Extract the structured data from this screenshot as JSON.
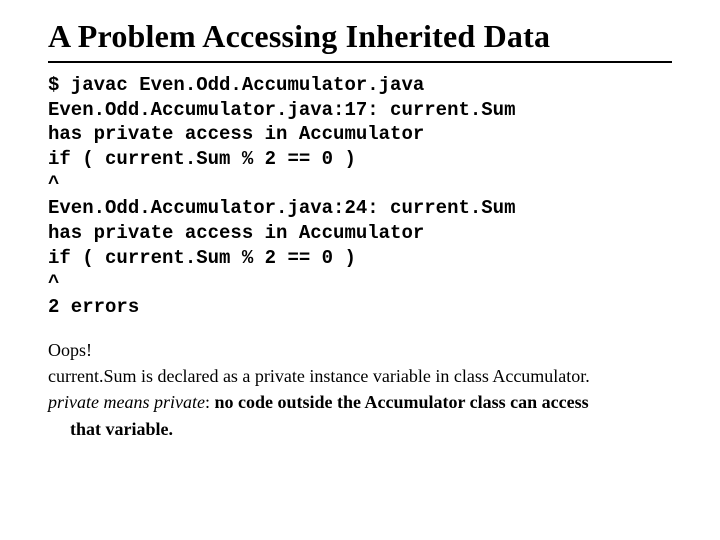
{
  "title": "A Problem Accessing Inherited Data",
  "code": {
    "l1": "$ javac Even.Odd.Accumulator.java",
    "l2": "Even.Odd.Accumulator.java:17: current.Sum",
    "l3": "has private access in Accumulator",
    "l4": "if ( current.Sum % 2 == 0 )",
    "l5": "^",
    "l6": "Even.Odd.Accumulator.java:24: current.Sum",
    "l7": "has private access in Accumulator",
    "l8": "if ( current.Sum % 2 == 0 )",
    "l9": "^",
    "l10": "2 errors"
  },
  "notes": {
    "p1": "Oops!",
    "p2": "current.Sum is declared as a private instance variable in class Accumulator.",
    "p3a": "private means private",
    "p3b": ": ",
    "p3c": "no code outside the Accumulator class can access",
    "p4": "that variable."
  },
  "colors": {
    "text": "#000000",
    "background": "#ffffff",
    "underline": "#000000"
  },
  "typography": {
    "title_fontsize": 32,
    "code_fontsize": 19,
    "notes_fontsize": 18,
    "title_family": "Times New Roman",
    "code_family": "Courier New",
    "notes_family": "Times New Roman"
  }
}
